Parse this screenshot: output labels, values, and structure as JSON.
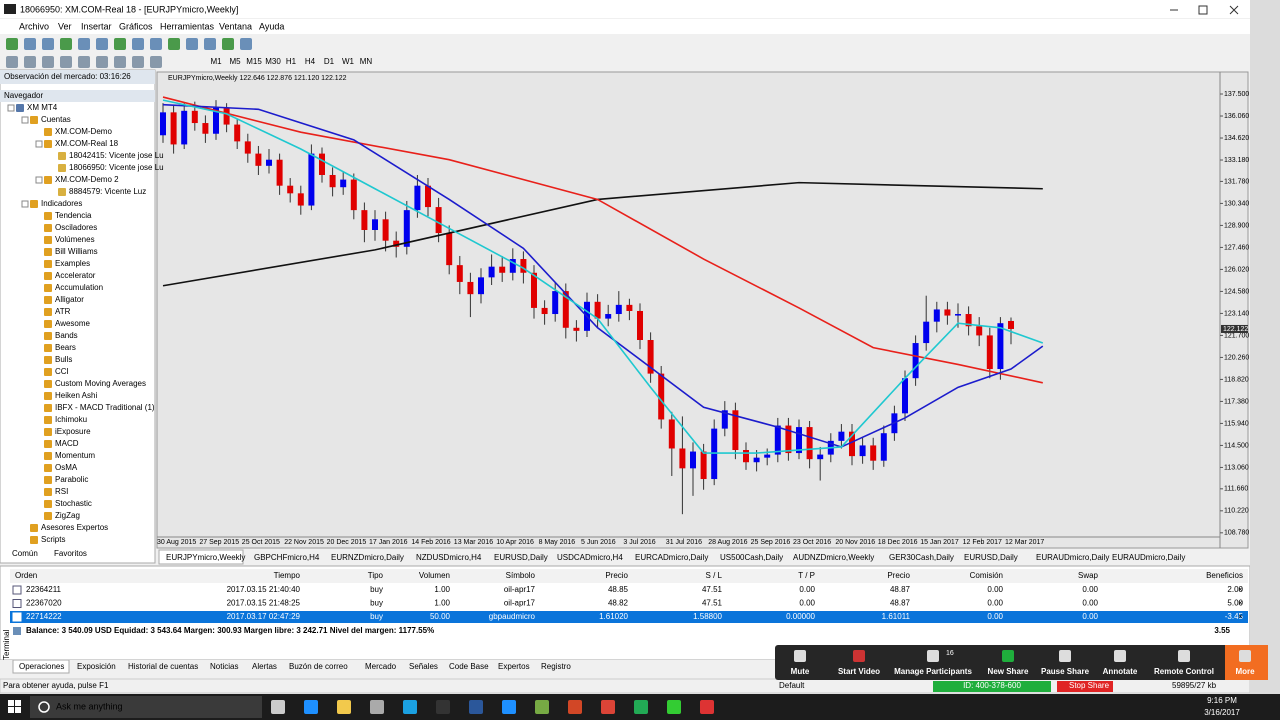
{
  "window": {
    "title": "18066950: XM.COM-Real 18 - [EURJPYmicro,Weekly]",
    "menu": [
      "Archivo",
      "Ver",
      "Insertar",
      "Gráficos",
      "Herramientas",
      "Ventana",
      "Ayuda"
    ],
    "timeframes": [
      "M1",
      "M5",
      "M15",
      "M30",
      "H1",
      "H4",
      "D1",
      "W1",
      "MN"
    ]
  },
  "market_watch": {
    "title": "Observación del mercado: 03:16:26"
  },
  "navigator": {
    "title": "Navegador",
    "tree": [
      {
        "label": "XM MT4",
        "children": [
          {
            "label": "Cuentas",
            "children": [
              {
                "label": "XM.COM-Demo"
              },
              {
                "label": "XM.COM-Real 18",
                "children": [
                  {
                    "label": "18042415: Vicente jose Lu"
                  },
                  {
                    "label": "18066950: Vicente jose Lu"
                  }
                ]
              },
              {
                "label": "XM.COM-Demo 2",
                "children": [
                  {
                    "label": "8884579: Vicente Luz"
                  }
                ]
              }
            ]
          },
          {
            "label": "Indicadores",
            "children": [
              {
                "label": "Tendencia"
              },
              {
                "label": "Osciladores"
              },
              {
                "label": "Volúmenes"
              },
              {
                "label": "Bill Williams"
              },
              {
                "label": "Examples"
              },
              {
                "label": "Accelerator"
              },
              {
                "label": "Accumulation"
              },
              {
                "label": "Alligator"
              },
              {
                "label": "ATR"
              },
              {
                "label": "Awesome"
              },
              {
                "label": "Bands"
              },
              {
                "label": "Bears"
              },
              {
                "label": "Bulls"
              },
              {
                "label": "CCI"
              },
              {
                "label": "Custom Moving Averages"
              },
              {
                "label": "Heiken Ashi"
              },
              {
                "label": "IBFX - MACD Traditional (1)"
              },
              {
                "label": "Ichimoku"
              },
              {
                "label": "iExposure"
              },
              {
                "label": "MACD"
              },
              {
                "label": "Momentum"
              },
              {
                "label": "OsMA"
              },
              {
                "label": "Parabolic"
              },
              {
                "label": "RSI"
              },
              {
                "label": "Stochastic"
              },
              {
                "label": "ZigZag"
              }
            ]
          },
          {
            "label": "Asesores Expertos"
          },
          {
            "label": "Scripts"
          }
        ]
      }
    ],
    "tabs": [
      "Común",
      "Favoritos"
    ]
  },
  "chart": {
    "type": "candlestick",
    "header": "EURJPYmicro,Weekly  122.646 122.876 121.120 122.122",
    "ylim": [
      108.31,
      138.81
    ],
    "yticks": [
      {
        "value": 137.5,
        "label": "137.500"
      },
      {
        "value": 136.06,
        "label": "136.060"
      },
      {
        "value": 134.62,
        "label": "134.620"
      },
      {
        "value": 133.18,
        "label": "133.180"
      },
      {
        "value": 131.78,
        "label": "131.780"
      },
      {
        "value": 130.34,
        "label": "130.340"
      },
      {
        "value": 128.9,
        "label": "128.900"
      },
      {
        "value": 127.46,
        "label": "127.460"
      },
      {
        "value": 126.02,
        "label": "126.020"
      },
      {
        "value": 124.58,
        "label": "124.580"
      },
      {
        "value": 123.14,
        "label": "123.140"
      },
      {
        "value": 121.7,
        "label": "121.700"
      },
      {
        "value": 120.26,
        "label": "120.260"
      },
      {
        "value": 118.82,
        "label": "118.820"
      },
      {
        "value": 117.38,
        "label": "117.380"
      },
      {
        "value": 115.94,
        "label": "115.940"
      },
      {
        "value": 114.5,
        "label": "114.500"
      },
      {
        "value": 113.06,
        "label": "113.060"
      },
      {
        "value": 111.66,
        "label": "111.660"
      },
      {
        "value": 110.22,
        "label": "110.220"
      },
      {
        "value": 108.78,
        "label": "108.780"
      }
    ],
    "xticks": [
      "30 Aug 2015",
      "27 Sep 2015",
      "25 Oct 2015",
      "22 Nov 2015",
      "20 Dec 2015",
      "17 Jan 2016",
      "14 Feb 2016",
      "13 Mar 2016",
      "10 Apr 2016",
      "8 May 2016",
      "5 Jun 2016",
      "3 Jul 2016",
      "31 Jul 2016",
      "28 Aug 2016",
      "25 Sep 2016",
      "23 Oct 2016",
      "20 Nov 2016",
      "18 Dec 2016",
      "15 Jan 2017",
      "12 Feb 2017",
      "12 Mar 2017"
    ],
    "current_price": {
      "value": 122.122,
      "label": "122.122"
    },
    "bull_color": "#0000ee",
    "bear_color": "#e00000",
    "candles": [
      [
        134.8,
        136.9,
        134.3,
        136.3
      ],
      [
        136.3,
        136.8,
        133.6,
        134.2
      ],
      [
        134.2,
        136.9,
        133.9,
        136.4
      ],
      [
        136.4,
        137.0,
        135.1,
        135.6
      ],
      [
        135.6,
        136.1,
        134.3,
        134.9
      ],
      [
        134.9,
        137.1,
        134.5,
        136.6
      ],
      [
        136.6,
        136.9,
        135.0,
        135.5
      ],
      [
        135.5,
        135.9,
        133.9,
        134.4
      ],
      [
        134.4,
        134.9,
        133.0,
        133.6
      ],
      [
        133.6,
        134.1,
        132.2,
        132.8
      ],
      [
        132.8,
        133.9,
        132.3,
        133.2
      ],
      [
        133.2,
        133.6,
        130.9,
        131.5
      ],
      [
        131.5,
        132.0,
        130.4,
        131.0
      ],
      [
        131.0,
        131.5,
        129.6,
        130.2
      ],
      [
        130.2,
        134.2,
        129.9,
        133.6
      ],
      [
        133.6,
        134.0,
        131.7,
        132.2
      ],
      [
        132.2,
        132.7,
        130.8,
        131.4
      ],
      [
        131.4,
        132.4,
        130.9,
        131.9
      ],
      [
        131.9,
        132.3,
        129.3,
        129.9
      ],
      [
        129.9,
        130.4,
        127.8,
        128.6
      ],
      [
        128.6,
        129.9,
        127.9,
        129.3
      ],
      [
        129.3,
        129.8,
        127.2,
        127.9
      ],
      [
        127.9,
        128.5,
        126.8,
        127.5
      ],
      [
        127.5,
        130.5,
        127.0,
        129.9
      ],
      [
        129.9,
        132.2,
        129.4,
        131.5
      ],
      [
        131.5,
        132.0,
        129.5,
        130.1
      ],
      [
        130.1,
        130.7,
        127.8,
        128.4
      ],
      [
        128.4,
        128.9,
        125.7,
        126.3
      ],
      [
        126.3,
        126.9,
        124.4,
        125.2
      ],
      [
        125.2,
        125.8,
        122.9,
        124.4
      ],
      [
        124.4,
        126.1,
        123.8,
        125.5
      ],
      [
        125.5,
        127.0,
        125.0,
        126.2
      ],
      [
        126.2,
        126.9,
        125.2,
        125.8
      ],
      [
        125.8,
        127.4,
        125.3,
        126.7
      ],
      [
        126.7,
        127.2,
        125.1,
        125.8
      ],
      [
        125.8,
        126.3,
        122.8,
        123.5
      ],
      [
        123.5,
        124.0,
        122.4,
        123.1
      ],
      [
        123.1,
        125.2,
        122.6,
        124.6
      ],
      [
        124.6,
        125.1,
        121.5,
        122.2
      ],
      [
        122.2,
        122.7,
        121.3,
        122.0
      ],
      [
        122.0,
        124.5,
        121.6,
        123.9
      ],
      [
        123.9,
        124.4,
        122.2,
        122.8
      ],
      [
        122.8,
        123.7,
        122.3,
        123.1
      ],
      [
        123.1,
        124.6,
        122.6,
        123.7
      ],
      [
        123.7,
        124.1,
        122.7,
        123.3
      ],
      [
        123.3,
        123.8,
        120.8,
        121.4
      ],
      [
        121.4,
        121.9,
        118.6,
        119.2
      ],
      [
        119.2,
        119.7,
        115.6,
        116.2
      ],
      [
        116.2,
        116.7,
        112.5,
        114.3
      ],
      [
        114.3,
        116.4,
        110.0,
        113.0
      ],
      [
        113.0,
        114.7,
        111.2,
        114.1
      ],
      [
        114.1,
        114.6,
        111.6,
        112.3
      ],
      [
        112.3,
        116.2,
        111.9,
        115.6
      ],
      [
        115.6,
        117.4,
        115.1,
        116.8
      ],
      [
        116.8,
        117.3,
        113.6,
        114.2
      ],
      [
        114.2,
        114.7,
        112.9,
        113.4
      ],
      [
        113.4,
        114.2,
        112.8,
        113.7
      ],
      [
        113.7,
        114.3,
        113.2,
        113.9
      ],
      [
        113.9,
        116.3,
        113.4,
        115.8
      ],
      [
        115.8,
        116.3,
        113.5,
        114.0
      ],
      [
        114.0,
        116.2,
        113.6,
        115.7
      ],
      [
        115.7,
        116.1,
        113.0,
        113.6
      ],
      [
        113.6,
        114.4,
        112.2,
        113.9
      ],
      [
        113.9,
        115.3,
        113.4,
        114.8
      ],
      [
        114.8,
        115.9,
        114.3,
        115.4
      ],
      [
        115.4,
        115.9,
        113.2,
        113.8
      ],
      [
        113.8,
        115.0,
        113.3,
        114.5
      ],
      [
        114.5,
        115.0,
        112.9,
        113.5
      ],
      [
        113.5,
        115.8,
        113.1,
        115.3
      ],
      [
        115.3,
        117.1,
        114.8,
        116.6
      ],
      [
        116.6,
        119.4,
        116.1,
        118.9
      ],
      [
        118.9,
        121.7,
        118.4,
        121.2
      ],
      [
        121.2,
        124.3,
        120.7,
        122.6
      ],
      [
        122.6,
        123.9,
        121.9,
        123.4
      ],
      [
        123.4,
        123.9,
        122.4,
        123.0
      ],
      [
        123.0,
        123.8,
        122.2,
        123.1
      ],
      [
        123.1,
        123.6,
        121.7,
        122.3
      ],
      [
        122.3,
        122.9,
        121.0,
        121.7
      ],
      [
        121.7,
        122.2,
        118.9,
        119.5
      ],
      [
        119.5,
        122.9,
        118.8,
        122.5
      ],
      [
        122.646,
        122.876,
        121.12,
        122.122
      ]
    ],
    "indicators": [
      {
        "color": "#111111",
        "points": [
          [
            0,
            124.95
          ],
          [
            20,
            127.3
          ],
          [
            41,
            130.6
          ],
          [
            60,
            131.7
          ],
          [
            83,
            131.3
          ]
        ]
      },
      {
        "color": "#e8201a",
        "points": [
          [
            0,
            137.3
          ],
          [
            13,
            135.0
          ],
          [
            27,
            133.2
          ],
          [
            41,
            130.6
          ],
          [
            51,
            126.7
          ],
          [
            60,
            123.5
          ],
          [
            67,
            120.9
          ],
          [
            75,
            119.8
          ],
          [
            83,
            118.6
          ]
        ]
      },
      {
        "color": "#1c1ccc",
        "points": [
          [
            0,
            136.8
          ],
          [
            9,
            136.5
          ],
          [
            18,
            134.5
          ],
          [
            27,
            130.6
          ],
          [
            34,
            127.4
          ],
          [
            41,
            122.2
          ],
          [
            51,
            117.0
          ],
          [
            58,
            115.7
          ],
          [
            64,
            114.4
          ],
          [
            70,
            116.3
          ],
          [
            75,
            118.3
          ],
          [
            80,
            119.5
          ],
          [
            83,
            121.0
          ]
        ]
      },
      {
        "color": "#1fc8d0",
        "points": [
          [
            0,
            137.1
          ],
          [
            6,
            136.2
          ],
          [
            13,
            133.9
          ],
          [
            20,
            131.3
          ],
          [
            27,
            128.7
          ],
          [
            34,
            126.1
          ],
          [
            41,
            122.8
          ],
          [
            46,
            118.3
          ],
          [
            51,
            114.0
          ],
          [
            56,
            114.0
          ],
          [
            64,
            114.4
          ],
          [
            70,
            118.9
          ],
          [
            75,
            122.5
          ],
          [
            79,
            122.2
          ],
          [
            83,
            121.2
          ]
        ]
      }
    ]
  },
  "chart_tabs": [
    "EURJPYmicro,Weekly",
    "GBPCHFmicro,H4",
    "EURNZDmicro,Daily",
    "NZDUSDmicro,H4",
    "EURUSD,Daily",
    "USDCADmicro,H4",
    "EURCADmicro,Daily",
    "US500Cash,Daily",
    "AUDNZDmicro,Weekly",
    "GER30Cash,Daily",
    "EURUSD,Daily",
    "EURAUDmicro,Daily",
    "EURAUDmicro,Daily"
  ],
  "terminal": {
    "label": "Terminal",
    "columns": [
      "Orden",
      "Tiempo",
      "Tipo",
      "Volumen",
      "Símbolo",
      "Precio",
      "S / L",
      "T / P",
      "Precio",
      "Comisión",
      "Swap",
      "Beneficios"
    ],
    "rows": [
      [
        "22364211",
        "2017.03.15 21:40:40",
        "buy",
        "1.00",
        "oil-apr17",
        "48.85",
        "47.51",
        "0.00",
        "48.87",
        "0.00",
        "0.00",
        "2.00"
      ],
      [
        "22367020",
        "2017.03.15 21:48:25",
        "buy",
        "1.00",
        "oil-apr17",
        "48.82",
        "47.51",
        "0.00",
        "48.87",
        "0.00",
        "0.00",
        "5.00"
      ],
      [
        "22714222",
        "2017.03.17 02:47:29",
        "buy",
        "50.00",
        "gbpaudmicro",
        "1.61020",
        "1.58800",
        "0.00000",
        "1.61011",
        "0.00",
        "0.00",
        "-3.45"
      ]
    ],
    "balance": "Balance: 3 540.09 USD  Equidad: 3 543.64  Margen: 300.93  Margen libre: 3 242.71  Nivel del margen: 1177.55%",
    "total": "3.55",
    "tabs": [
      "Operaciones",
      "Exposición",
      "Historial de cuentas",
      "Noticias",
      "Alertas",
      "Buzón de correo",
      "Mercado",
      "Señales",
      "Code Base",
      "Expertos",
      "Registro"
    ]
  },
  "zoom": {
    "buttons": [
      "Mute",
      "Start Video",
      "Manage Participants",
      "New Share",
      "Pause Share",
      "Annotate",
      "Remote Control",
      "More"
    ],
    "participants": "16",
    "meeting_id": "ID: 400-378-600",
    "stop": "Stop Share"
  },
  "status": {
    "help": "Para obtener ayuda, pulse F1",
    "profile": "Default",
    "traffic": "59895/27 kb"
  },
  "taskbar": {
    "search": "Ask me anything",
    "time": "9:16 PM",
    "date": "3/16/2017"
  }
}
